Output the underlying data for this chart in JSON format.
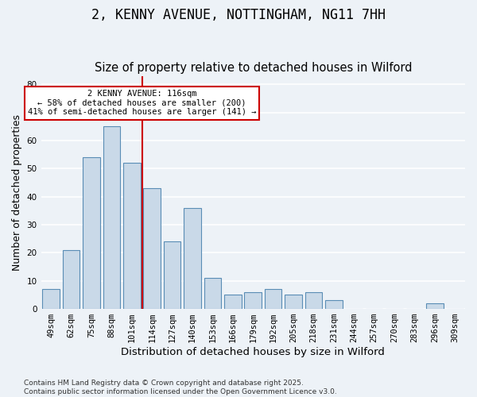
{
  "title": "2, KENNY AVENUE, NOTTINGHAM, NG11 7HH",
  "subtitle": "Size of property relative to detached houses in Wilford",
  "xlabel": "Distribution of detached houses by size in Wilford",
  "ylabel": "Number of detached properties",
  "categories": [
    "49sqm",
    "62sqm",
    "75sqm",
    "88sqm",
    "101sqm",
    "114sqm",
    "127sqm",
    "140sqm",
    "153sqm",
    "166sqm",
    "179sqm",
    "192sqm",
    "205sqm",
    "218sqm",
    "231sqm",
    "244sqm",
    "257sqm",
    "270sqm",
    "283sqm",
    "296sqm",
    "309sqm"
  ],
  "values": [
    7,
    21,
    54,
    65,
    52,
    43,
    24,
    36,
    11,
    5,
    6,
    7,
    5,
    6,
    3,
    0,
    0,
    0,
    0,
    2,
    0
  ],
  "bar_color": "#c9d9e8",
  "bar_edge_color": "#5a8db5",
  "vline_x": 4.5,
  "vline_color": "#cc0000",
  "annotation_box_color": "#cc0000",
  "annotation_text": "2 KENNY AVENUE: 116sqm\n← 58% of detached houses are smaller (200)\n41% of semi-detached houses are larger (141) →",
  "ylim": [
    0,
    83
  ],
  "yticks": [
    0,
    10,
    20,
    30,
    40,
    50,
    60,
    70,
    80
  ],
  "footer": "Contains HM Land Registry data © Crown copyright and database right 2025.\nContains public sector information licensed under the Open Government Licence v3.0.",
  "background_color": "#edf2f7",
  "grid_color": "#ffffff",
  "title_fontsize": 12,
  "subtitle_fontsize": 10.5,
  "axis_label_fontsize": 9,
  "tick_fontsize": 7.5,
  "footer_fontsize": 6.5
}
